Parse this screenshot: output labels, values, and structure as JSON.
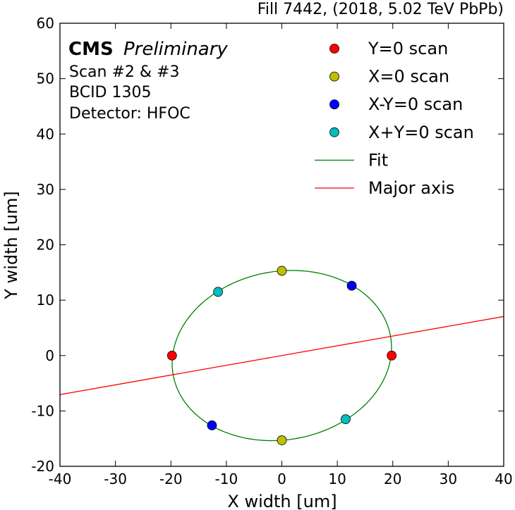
{
  "chart_data": {
    "type": "scatter",
    "title": "Fill 7442, (2018, 5.02 TeV PbPb)",
    "xlabel": "X width [um]",
    "ylabel": "Y width [um]",
    "xlim": [
      -40,
      40
    ],
    "ylim": [
      -20,
      60
    ],
    "xticks": [
      -40,
      -30,
      -20,
      -10,
      0,
      10,
      20,
      30,
      40
    ],
    "yticks": [
      -20,
      -10,
      0,
      10,
      20,
      30,
      40,
      50,
      60
    ],
    "grid": false,
    "legend_position": "top-right",
    "annotation": {
      "experiment": "CMS",
      "status": "Preliminary",
      "lines": [
        "Scan #2 & #3",
        "BCID 1305",
        "Detector: HFOC"
      ]
    },
    "series": [
      {
        "name": "Y=0 scan",
        "color": "#ff0000",
        "marker": "circle",
        "points": [
          [
            -19.8,
            0.0
          ],
          [
            19.8,
            0.0
          ]
        ]
      },
      {
        "name": "X=0 scan",
        "color": "#bfbf00",
        "marker": "circle",
        "points": [
          [
            0.0,
            15.3
          ],
          [
            0.0,
            -15.3
          ]
        ]
      },
      {
        "name": "X-Y=0 scan",
        "color": "#0000ff",
        "marker": "circle",
        "points": [
          [
            12.6,
            12.6
          ],
          [
            -12.6,
            -12.6
          ]
        ]
      },
      {
        "name": "X+Y=0 scan",
        "color": "#00bfbf",
        "marker": "circle",
        "points": [
          [
            -11.5,
            11.5
          ],
          [
            11.5,
            -11.5
          ]
        ]
      }
    ],
    "fit": {
      "name": "Fit",
      "color": "#008000",
      "type": "ellipse",
      "center": [
        0,
        0
      ],
      "semi_major": 19.9,
      "semi_minor": 15.2,
      "angle_deg": 10
    },
    "major_axis": {
      "name": "Major axis",
      "color": "#ff0000",
      "type": "line",
      "points": [
        [
          -40,
          -7.05
        ],
        [
          40,
          7.05
        ]
      ]
    }
  }
}
